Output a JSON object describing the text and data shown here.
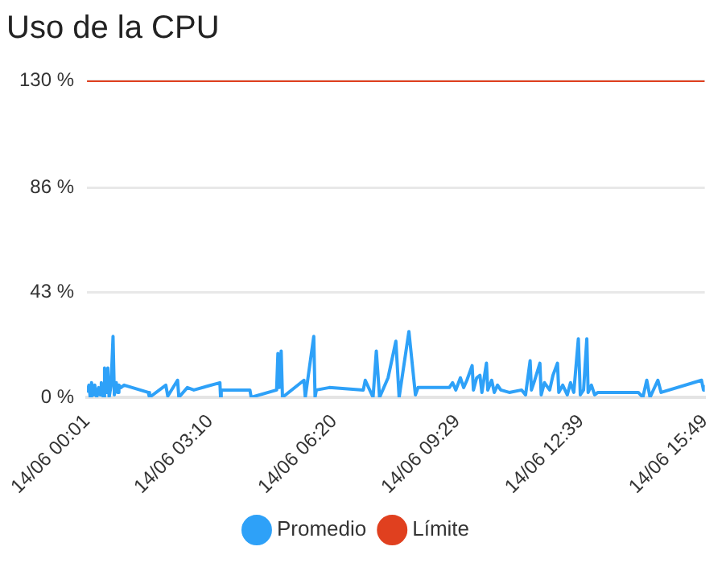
{
  "chart_data": {
    "type": "line",
    "title": "Uso de la CPU",
    "legend": "bottom",
    "grid": "y",
    "marker": "none",
    "line_style": "solid",
    "xlim": [
      "--06-14T00:01",
      "--06-14T15:49"
    ],
    "xticks": [
      {
        "value": "--06-14T00:01",
        "label": "14/06 00:01"
      },
      {
        "value": "--06-14T03:10",
        "label": "14/06 03:10"
      },
      {
        "value": "--06-14T06:20",
        "label": "14/06 06:20"
      },
      {
        "value": "--06-14T09:29",
        "label": "14/06 09:29"
      },
      {
        "value": "--06-14T12:39",
        "label": "14/06 12:39"
      },
      {
        "value": "--06-14T15:49",
        "label": "14/06 15:49"
      }
    ],
    "ylim": [
      0,
      130
    ],
    "yticks": [
      {
        "value": 0,
        "label": "0 %"
      },
      {
        "value": 43,
        "label": "43 %"
      },
      {
        "value": 86,
        "label": "86 %"
      },
      {
        "value": 130,
        "label": "130 %"
      }
    ],
    "series": [
      {
        "name": "Promedio",
        "color": "#2ea1f8",
        "x": [
          "--06-14T00:01",
          "--06-14T00:04",
          "--06-14T00:06",
          "--06-14T00:08",
          "--06-14T00:11",
          "--06-14T00:13",
          "--06-14T00:16",
          "--06-14T00:19",
          "--06-14T00:21",
          "--06-14T00:23",
          "--06-14T00:26",
          "--06-14T00:28",
          "--06-14T00:31",
          "--06-14T00:33",
          "--06-14T00:35",
          "--06-14T00:38",
          "--06-14T00:41",
          "--06-14T00:43",
          "--06-14T00:46",
          "--06-14T00:48",
          "--06-14T00:50",
          "--06-14T00:53",
          "--06-14T00:58",
          "--06-14T01:35",
          "--06-14T01:37",
          "--06-14T02:02",
          "--06-14T02:05",
          "--06-14T02:20",
          "--06-14T02:22",
          "--06-14T02:35",
          "--06-14T02:45",
          "--06-14T03:25",
          "--06-14T03:26",
          "--06-14T03:27",
          "--06-14T04:11",
          "--06-14T04:13",
          "--06-14T04:52",
          "--06-14T04:54",
          "--06-14T04:56",
          "--06-14T04:59",
          "--06-14T05:01",
          "--06-14T05:34",
          "--06-14T05:36",
          "--06-14T05:49",
          "--06-14T05:51",
          "--06-14T05:53",
          "--06-14T06:13",
          "--06-14T07:05",
          "--06-14T07:08",
          "--06-14T07:20",
          "--06-14T07:25",
          "--06-14T07:30",
          "--06-14T07:43",
          "--06-14T07:55",
          "--06-14T08:00",
          "--06-14T08:15",
          "--06-14T08:25",
          "--06-14T08:29",
          "--06-14T09:17",
          "--06-14T09:22",
          "--06-14T09:27",
          "--06-14T09:34",
          "--06-14T09:39",
          "--06-14T09:44",
          "--06-14T09:52",
          "--06-14T09:54",
          "--06-14T09:59",
          "--06-14T10:04",
          "--06-14T10:07",
          "--06-14T10:14",
          "--06-14T10:16",
          "--06-14T10:22",
          "--06-14T10:26",
          "--06-14T10:31",
          "--06-14T10:36",
          "--06-14T10:49",
          "--06-14T11:08",
          "--06-14T11:14",
          "--06-14T11:21",
          "--06-14T11:23",
          "--06-14T11:28",
          "--06-14T11:36",
          "--06-14T11:38",
          "--06-14T11:43",
          "--06-14T11:51",
          "--06-14T11:56",
          "--06-14T12:03",
          "--06-14T12:05",
          "--06-14T12:11",
          "--06-14T12:18",
          "--06-14T12:23",
          "--06-14T12:28",
          "--06-14T12:35",
          "--06-14T12:38",
          "--06-14T12:43",
          "--06-14T12:48",
          "--06-14T12:50",
          "--06-14T12:55",
          "--06-14T13:00",
          "--06-14T13:05",
          "--06-14T13:35",
          "--06-14T14:07",
          "--06-14T14:14",
          "--06-14T14:20",
          "--06-14T14:25",
          "--06-14T14:37",
          "--06-14T14:42",
          "--06-14T15:44",
          "--06-14T15:47",
          "--06-14T15:49"
        ],
        "values": [
          2,
          5,
          0,
          6,
          1,
          5,
          0,
          4,
          1,
          6,
          0,
          12,
          2,
          12,
          0,
          5,
          25,
          1,
          6,
          2,
          5,
          4,
          5,
          2,
          0,
          5,
          0.5,
          7,
          0,
          4,
          3,
          6,
          0,
          3,
          3,
          0,
          3,
          18,
          4,
          19,
          0,
          7,
          0,
          25,
          0,
          3,
          4,
          3,
          7,
          0,
          19,
          0,
          8,
          23,
          0,
          27,
          1,
          4,
          4,
          6,
          3,
          8,
          4,
          7,
          13,
          3,
          8,
          9,
          2,
          14,
          3,
          7,
          2,
          5,
          3,
          2,
          3,
          1,
          15,
          3,
          7,
          14,
          1,
          6,
          3,
          9,
          14,
          2,
          5,
          1,
          6,
          2,
          24,
          1,
          3,
          24,
          2,
          5,
          1,
          2,
          2,
          2,
          0,
          7,
          0,
          7,
          2,
          7,
          3,
          5
        ]
      },
      {
        "name": "Límite",
        "color": "#e0401f",
        "x": [
          "--06-14T00:01",
          "--06-14T15:49"
        ],
        "values": [
          130,
          130
        ]
      }
    ]
  }
}
